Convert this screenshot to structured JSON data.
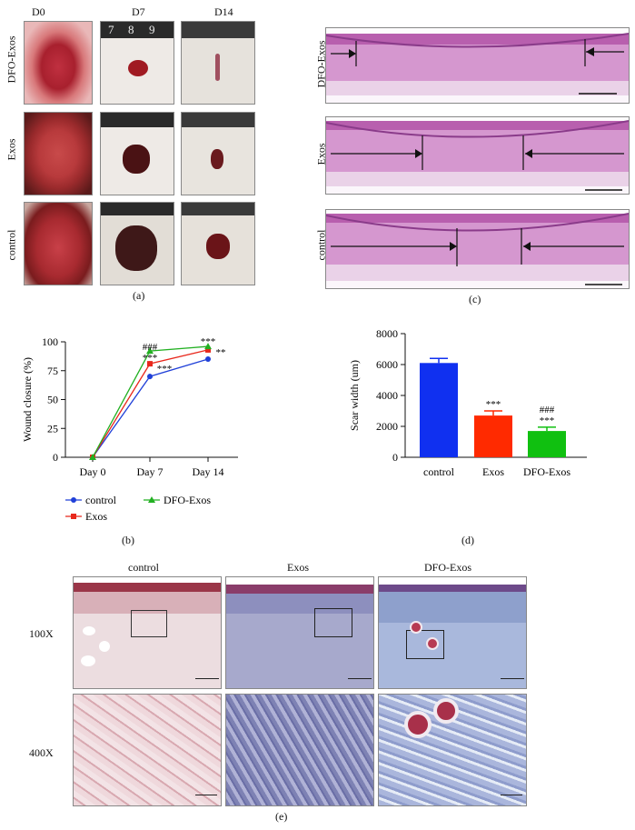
{
  "panel_a": {
    "caption": "(a)",
    "col_headers": [
      "D0",
      "D7",
      "D14"
    ],
    "row_labels": [
      "DFO-Exos",
      "Exos",
      "control"
    ],
    "ruler_marks": [
      "7",
      "8",
      "9"
    ]
  },
  "panel_c": {
    "caption": "(c)",
    "row_labels": [
      "DFO-Exos",
      "Exos",
      "control"
    ]
  },
  "panel_b": {
    "caption": "(b)",
    "sig_labels": {
      "day7_top_hash": "###",
      "day7_top_star": "***",
      "day7_mid_star": "***",
      "day14_top_star": "***",
      "day14_mid_star": "**"
    }
  },
  "panel_d": {
    "caption": "(d)",
    "sig_labels": {
      "exos_star": "***",
      "dfo_hash": "###",
      "dfo_star": "***"
    }
  },
  "panel_e": {
    "caption": "(e)",
    "col_headers": [
      "control",
      "Exos",
      "DFO-Exos"
    ],
    "row_labels": [
      "100X",
      "400X"
    ]
  },
  "chart_data": [
    {
      "type": "line",
      "ylabel": "Wound closure (%)",
      "xlabel": "",
      "categories": [
        "Day 0",
        "Day 7",
        "Day 14"
      ],
      "ylim": [
        0,
        100
      ],
      "yticks": [
        0,
        25,
        50,
        75,
        100
      ],
      "legend_placement": "bottom",
      "series": [
        {
          "name": "control",
          "values": [
            0,
            70,
            85
          ],
          "color": "#2040d8",
          "marker": "circle"
        },
        {
          "name": "Exos",
          "values": [
            0,
            81,
            93
          ],
          "color": "#e8281c",
          "marker": "square"
        },
        {
          "name": "DFO-Exos",
          "values": [
            0,
            92,
            96
          ],
          "color": "#22b022",
          "marker": "triangle"
        }
      ]
    },
    {
      "type": "bar",
      "ylabel": "Scar width (um)",
      "xlabel": "",
      "categories": [
        "control",
        "Exos",
        "DFO-Exos"
      ],
      "values": [
        6100,
        2700,
        1700
      ],
      "errors": [
        300,
        300,
        250
      ],
      "colors": [
        "#1030f0",
        "#ff2a00",
        "#10c010"
      ],
      "ylim": [
        0,
        8000
      ],
      "yticks": [
        0,
        2000,
        4000,
        6000,
        8000
      ]
    }
  ]
}
